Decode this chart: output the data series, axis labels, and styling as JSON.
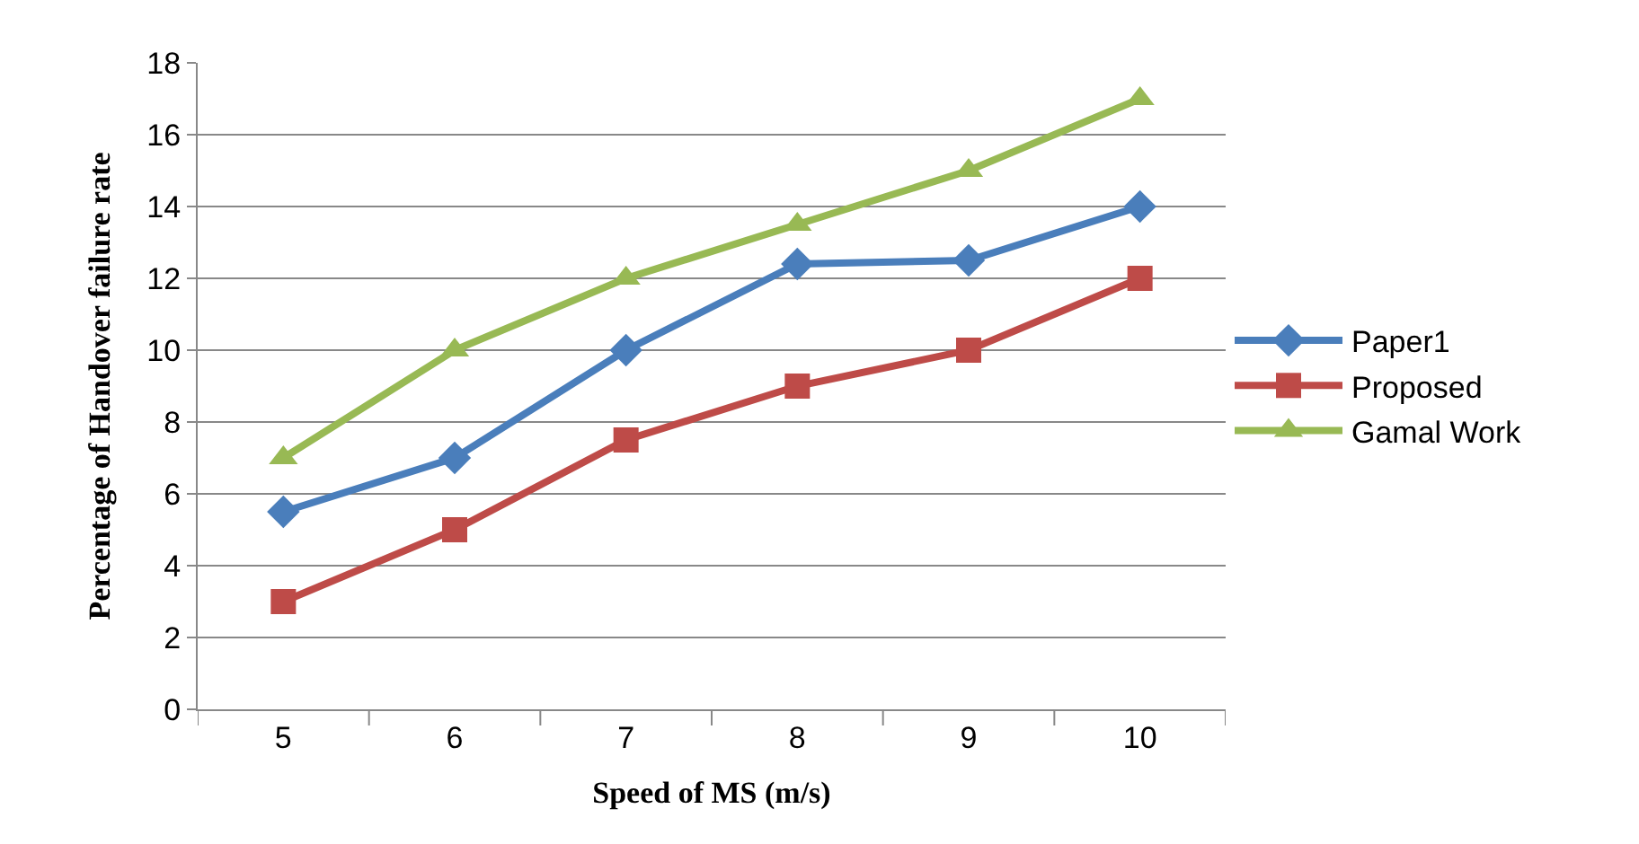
{
  "chart_data": {
    "type": "line",
    "xlabel": "Speed of MS (m/s)",
    "ylabel": "Percentage of Handover failure rate",
    "categories": [
      "5",
      "6",
      "7",
      "8",
      "9",
      "10"
    ],
    "series": [
      {
        "name": "Paper1",
        "color": "#4a7ebb",
        "marker": "diamond",
        "values": [
          5.5,
          7,
          10,
          12.4,
          12.5,
          14
        ]
      },
      {
        "name": "Proposed",
        "color": "#be4b48",
        "marker": "square",
        "values": [
          3,
          5,
          7.5,
          9,
          10,
          12
        ]
      },
      {
        "name": "Gamal Work",
        "color": "#98b954",
        "marker": "triangle",
        "values": [
          7,
          10,
          12,
          13.5,
          15,
          17
        ]
      }
    ],
    "ylim": [
      0,
      18
    ],
    "yticks": [
      0,
      2,
      4,
      6,
      8,
      10,
      12,
      14,
      16,
      18
    ],
    "grid": "y",
    "legend": "right",
    "line_style": "solid"
  }
}
